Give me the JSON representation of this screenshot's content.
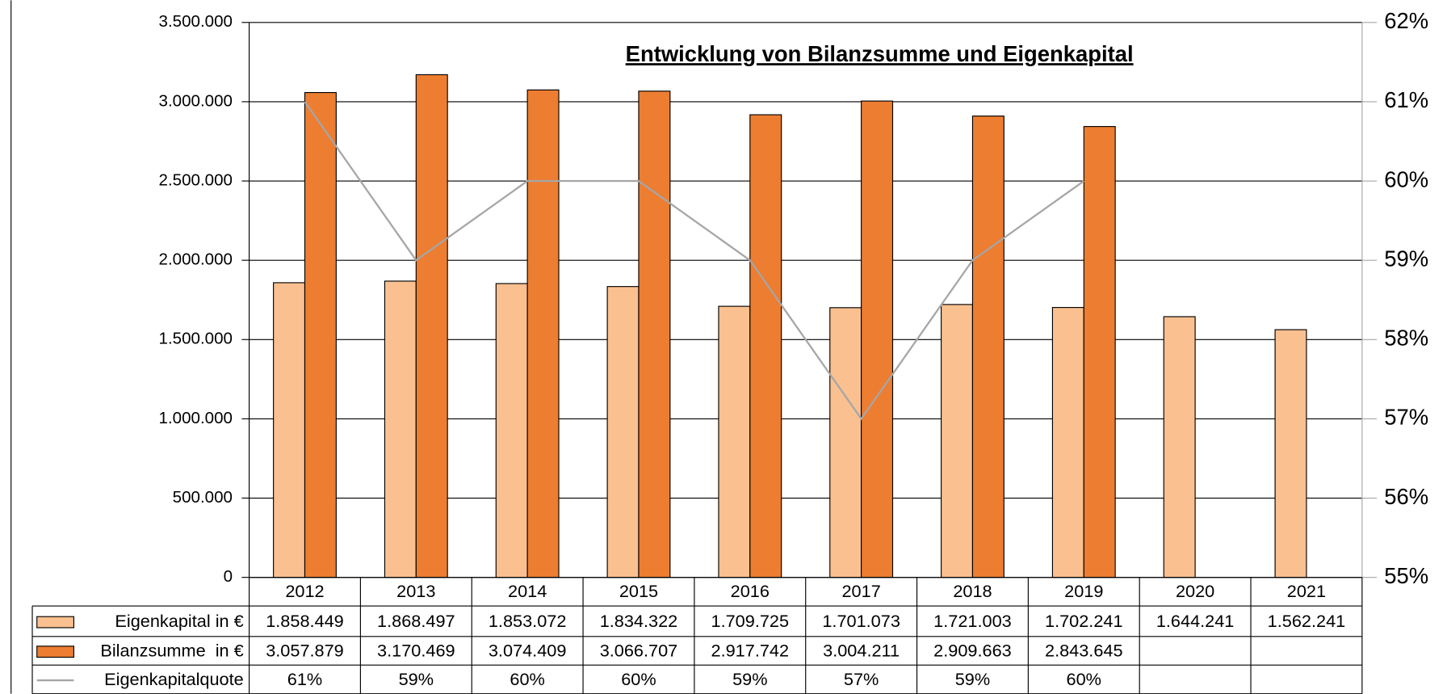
{
  "chart_data": {
    "type": "bar",
    "title": "Entwicklung von Bilanzsumme und Eigenkapital",
    "categories": [
      "2012",
      "2013",
      "2014",
      "2015",
      "2016",
      "2017",
      "2018",
      "2019",
      "2020",
      "2021"
    ],
    "series": [
      {
        "name": "Eigenkapital in €",
        "color": "#fac090",
        "values": [
          1858449,
          1868497,
          1853072,
          1834322,
          1709725,
          1701073,
          1721003,
          1702241,
          1644241,
          1562241
        ],
        "value_labels": [
          "1.858.449",
          "1.868.497",
          "1.853.072",
          "1.834.322",
          "1.709.725",
          "1.701.073",
          "1.721.003",
          "1.702.241",
          "1.644.241",
          "1.562.241"
        ]
      },
      {
        "name": "Bilanzsumme  in €",
        "color": "#ed7d31",
        "values": [
          3057879,
          3170469,
          3074409,
          3066707,
          2917742,
          3004211,
          2909663,
          2843645,
          null,
          null
        ],
        "value_labels": [
          "3.057.879",
          "3.170.469",
          "3.074.409",
          "3.066.707",
          "2.917.742",
          "3.004.211",
          "2.909.663",
          "2.843.645",
          null,
          null
        ]
      },
      {
        "name": "Eigenkapitalquote",
        "color": "#a6a6a6",
        "type": "line",
        "axis": "y2",
        "values": [
          61,
          59,
          60,
          60,
          59,
          57,
          59,
          60,
          null,
          null
        ],
        "value_labels": [
          "61%",
          "59%",
          "60%",
          "60%",
          "59%",
          "57%",
          "59%",
          "60%",
          null,
          null
        ]
      }
    ],
    "ylim": [
      0,
      3500000
    ],
    "yticks": [
      0,
      {
        "value": 500000,
        "label": "500.000"
      },
      {
        "value": 1000000,
        "label": "1.000.000"
      },
      {
        "value": 1500000,
        "label": "1.500.000"
      },
      {
        "value": 2000000,
        "label": "2.000.000"
      },
      {
        "value": 2500000,
        "label": "2.500.000"
      },
      {
        "value": 3000000,
        "label": "3.000.000"
      },
      {
        "value": 3500000,
        "label": "3.500.000"
      }
    ],
    "y2lim": [
      55,
      62
    ],
    "y2ticks": [
      {
        "value": 55,
        "label": "55%"
      },
      {
        "value": 56,
        "label": "56%"
      },
      {
        "value": 57,
        "label": "57%"
      },
      {
        "value": 58,
        "label": "58%"
      },
      {
        "value": 59,
        "label": "59%"
      },
      {
        "value": 60,
        "label": "60%"
      },
      {
        "value": 61,
        "label": "61%"
      },
      {
        "value": 62,
        "label": "62%"
      }
    ],
    "grid": true
  }
}
